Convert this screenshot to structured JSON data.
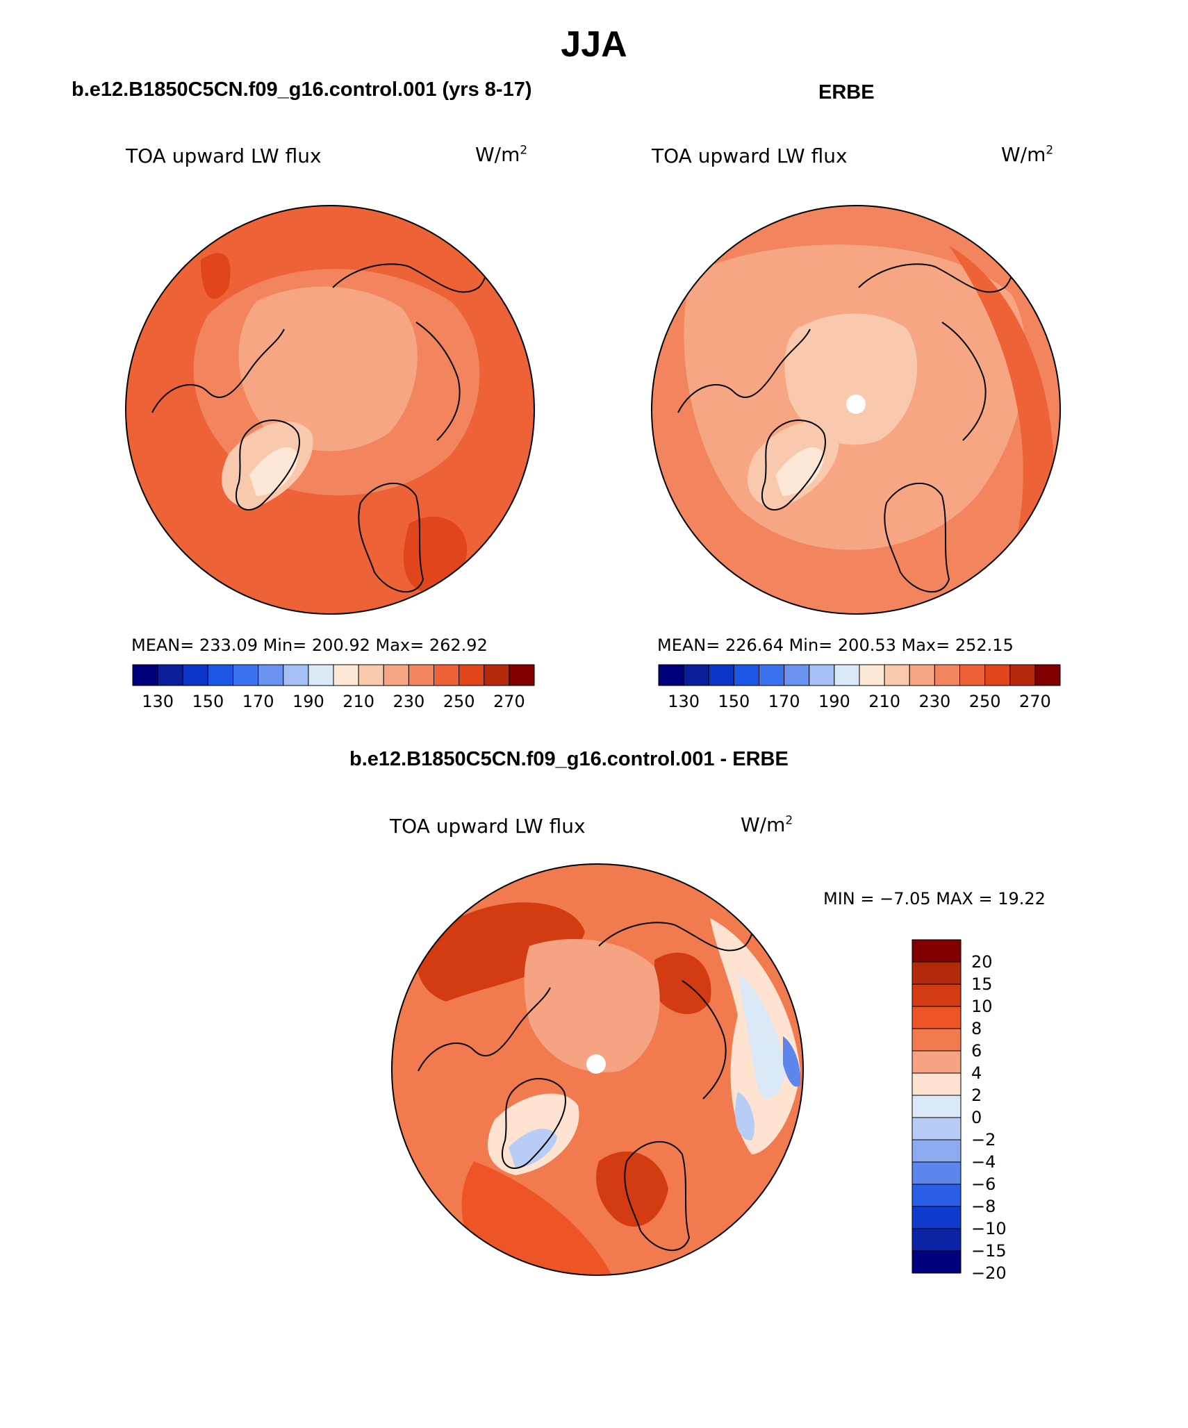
{
  "figure": {
    "title": "JJA"
  },
  "panels": [
    {
      "case_title": "b.e12.B1850C5CN.f09_g16.control.001 (yrs 8-17)",
      "variable_label": "TOA upward LW flux",
      "units": "W/m",
      "units_exp": "2",
      "stats": "MEAN= 233.09   Min= 200.92   Max= 262.92"
    },
    {
      "case_title": "ERBE",
      "variable_label": "TOA upward LW flux",
      "units": "W/m",
      "units_exp": "2",
      "stats": "MEAN= 226.64   Min= 200.53   Max= 252.15"
    },
    {
      "case_title": "b.e12.B1850C5CN.f09_g16.control.001 - ERBE",
      "variable_label": "TOA upward LW flux",
      "units": "W/m",
      "units_exp": "2",
      "stats": "MIN =   −7.05 MAX =   19.22"
    }
  ],
  "abs_colorbar": {
    "colors": [
      "#00007f",
      "#0a1e9c",
      "#0b35c6",
      "#1e56e6",
      "#3a72ef",
      "#6a92f1",
      "#a6c0f5",
      "#dbe8f8",
      "#fde8d8",
      "#f9c9ae",
      "#f6a683",
      "#f2855e",
      "#ee6238",
      "#e0451b",
      "#b52a0c",
      "#800000"
    ],
    "tick_labels": [
      "130",
      "150",
      "170",
      "190",
      "210",
      "230",
      "250",
      "270"
    ]
  },
  "diff_colorbar": {
    "colors": [
      "#800000",
      "#b22a0a",
      "#d33b12",
      "#ee5526",
      "#f27a4f",
      "#f6a383",
      "#fde3d0",
      "#dbe8f8",
      "#b7cdf5",
      "#8cabf0",
      "#5c86ec",
      "#2b5ee6",
      "#0f3ccc",
      "#0a24a4",
      "#00007f"
    ],
    "tick_labels": [
      "20",
      "15",
      "10",
      "8",
      "6",
      "4",
      "2",
      "0",
      "−2",
      "−4",
      "−6",
      "−8",
      "−10",
      "−15",
      "−20"
    ]
  }
}
